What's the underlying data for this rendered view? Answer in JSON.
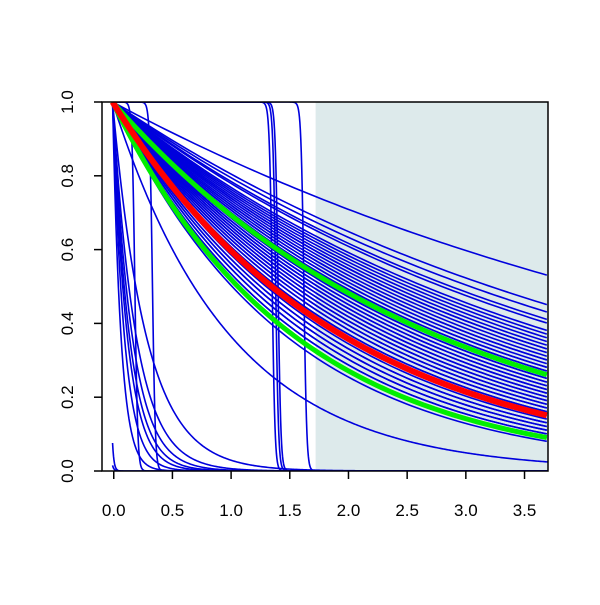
{
  "chart_data": {
    "type": "line",
    "title": "",
    "xlabel": "",
    "ylabel": "",
    "xlim": [
      -0.1,
      3.7
    ],
    "ylim": [
      0.0,
      1.0
    ],
    "grid": false,
    "x_ticks": [
      "0.0",
      "0.5",
      "1.0",
      "1.5",
      "2.0",
      "2.5",
      "3.0",
      "3.5"
    ],
    "y_ticks": [
      "0.0",
      "0.2",
      "0.4",
      "0.6",
      "0.8",
      "1.0"
    ],
    "shaded_region": {
      "x_from": 1.72,
      "x_to": 3.7,
      "color": "#ddeaeb"
    },
    "colors": {
      "ensemble": "#0000dd",
      "central": "#ff0000",
      "bounds": "#00ee00"
    },
    "central_curve": {
      "at_x0": 1.0,
      "at_x_end": 0.15
    },
    "bound_curves": [
      {
        "at_x0": 1.0,
        "at_x_end": 0.26
      },
      {
        "at_x0": 1.0,
        "at_x_end": 0.09
      }
    ],
    "ensemble_end_values": [
      0.53,
      0.45,
      0.43,
      0.41,
      0.4,
      0.38,
      0.37,
      0.36,
      0.35,
      0.34,
      0.33,
      0.33,
      0.32,
      0.31,
      0.3,
      0.3,
      0.29,
      0.28,
      0.28,
      0.27,
      0.27,
      0.26,
      0.25,
      0.25,
      0.24,
      0.24,
      0.23,
      0.23,
      0.22,
      0.22,
      0.21,
      0.21,
      0.2,
      0.2,
      0.19,
      0.19,
      0.18,
      0.18,
      0.17,
      0.17,
      0.16,
      0.16,
      0.15,
      0.15,
      0.14,
      0.13,
      0.13,
      0.12,
      0.12,
      0.11,
      0.11,
      0.1,
      0.1,
      0.09,
      0.08
    ],
    "fast_decay_curves": [
      {
        "rate": 1.0,
        "note": ""
      },
      {
        "rate": 3.5
      },
      {
        "rate": 5
      },
      {
        "rate": 6
      },
      {
        "rate": 7
      },
      {
        "rate": 8
      },
      {
        "rate": 10
      },
      {
        "rate": 14
      }
    ],
    "step_curves": [
      {
        "drop_at": -0.06
      },
      {
        "drop_at": -0.04
      },
      {
        "drop_at": 0.18
      },
      {
        "drop_at": 0.33
      },
      {
        "drop_at": 1.35
      },
      {
        "drop_at": 1.38
      },
      {
        "drop_at": 1.4
      },
      {
        "drop_at": 1.62
      }
    ]
  }
}
